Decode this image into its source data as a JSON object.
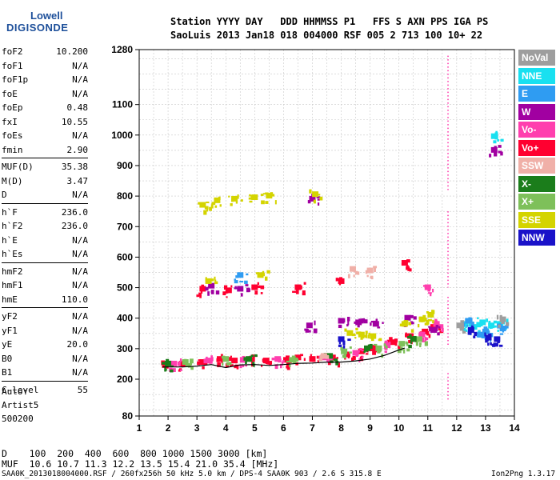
{
  "logo": {
    "line1": "Lowell",
    "line2": "DIGISONDE"
  },
  "header": {
    "line1": "Station YYYY DAY   DDD HHMMSS P1   FFS S AXN PPS IGA PS",
    "line2": "SaoLuis 2013 Jan18 018 004000 RSF 005 2 713 100 10+ 22"
  },
  "params": [
    {
      "name": "foF2",
      "value": "10.200"
    },
    {
      "name": "foF1",
      "value": "N/A"
    },
    {
      "name": "foF1p",
      "value": "N/A"
    },
    {
      "name": "foE",
      "value": "N/A"
    },
    {
      "name": "foEp",
      "value": "0.48"
    },
    {
      "name": "fxI",
      "value": "10.55"
    },
    {
      "name": "foEs",
      "value": "N/A"
    },
    {
      "name": "fmin",
      "value": "2.90"
    },
    {
      "name": "MUF(D)",
      "value": "35.38"
    },
    {
      "name": "M(D)",
      "value": "3.47"
    },
    {
      "name": "D",
      "value": "N/A"
    },
    {
      "name": "h`F",
      "value": "236.0"
    },
    {
      "name": "h`F2",
      "value": "236.0"
    },
    {
      "name": "h`E",
      "value": "N/A"
    },
    {
      "name": "h`Es",
      "value": "N/A"
    },
    {
      "name": "hmF2",
      "value": "N/A"
    },
    {
      "name": "hmF1",
      "value": "N/A"
    },
    {
      "name": "hmE",
      "value": "110.0"
    },
    {
      "name": "yF2",
      "value": "N/A"
    },
    {
      "name": "yF1",
      "value": "N/A"
    },
    {
      "name": "yE",
      "value": "20.0"
    },
    {
      "name": "B0",
      "value": "N/A"
    },
    {
      "name": "B1",
      "value": "N/A"
    },
    {
      "name": "C-level",
      "value": "55"
    }
  ],
  "autoscale": {
    "line1": "Auto:",
    "line2": "Artist5",
    "line3": "500200"
  },
  "legend": [
    {
      "label": "NoVal",
      "color": "#9e9e9e"
    },
    {
      "label": "NNE",
      "color": "#19e0f0"
    },
    {
      "label": "E",
      "color": "#2f9cf2"
    },
    {
      "label": "W",
      "color": "#a100a1"
    },
    {
      "label": "Vo-",
      "color": "#ff3fae"
    },
    {
      "label": "Vo+",
      "color": "#ff0030"
    },
    {
      "label": "SSW",
      "color": "#f0b0a8"
    },
    {
      "label": "X-",
      "color": "#1b7d1b"
    },
    {
      "label": "X+",
      "color": "#7ec05a"
    },
    {
      "label": "SSE",
      "color": "#d4d400"
    },
    {
      "label": "NNW",
      "color": "#1a12c9"
    }
  ],
  "muf_table": {
    "row1": "D    100  200  400  600  800 1000 1500 3000 [km]",
    "row2": "MUF  10.6 10.7 11.3 12.2 13.5 15.4 21.0 35.4 [MHz]"
  },
  "footer": {
    "left": "SAA0K_2013018004000.RSF / 260fx256h 50 kHz 5.0 km / DPS-4 SAA0K 903 / 2.6 S 315.8 E",
    "right": "Ion2Png 1.3.17"
  },
  "chart_data": {
    "type": "scatter",
    "title": "",
    "xlabel": "",
    "ylabel": "",
    "xlim": [
      1,
      14
    ],
    "ylim": [
      80,
      1280
    ],
    "x_ticks": [
      1,
      2,
      3,
      4,
      5,
      6,
      7,
      8,
      9,
      10,
      11,
      12,
      13,
      14
    ],
    "y_ticks": [
      80,
      200,
      300,
      400,
      500,
      600,
      700,
      800,
      900,
      1000,
      1100,
      1280
    ],
    "grid": true,
    "legend_position": "right",
    "series": [
      {
        "name": "Vo+",
        "color": "#ff0030",
        "points": [
          [
            1.9,
            245
          ],
          [
            2.5,
            250
          ],
          [
            3.2,
            255
          ],
          [
            3.8,
            265
          ],
          [
            4.3,
            260
          ],
          [
            4.9,
            265
          ],
          [
            5.4,
            260
          ],
          [
            6.1,
            262
          ],
          [
            6.5,
            270
          ],
          [
            7.0,
            265
          ],
          [
            7.7,
            270
          ],
          [
            8.2,
            280
          ],
          [
            8.7,
            290
          ],
          [
            9.1,
            300
          ],
          [
            9.8,
            320
          ],
          [
            10.4,
            340
          ],
          [
            10.9,
            355
          ],
          [
            11.2,
            370
          ],
          [
            3.2,
            495
          ],
          [
            4.1,
            490
          ],
          [
            5.0,
            500
          ],
          [
            6.5,
            500
          ],
          [
            8.0,
            520
          ],
          [
            10.2,
            580
          ]
        ]
      },
      {
        "name": "Vo-",
        "color": "#ff3fae",
        "points": [
          [
            2.2,
            250
          ],
          [
            3.4,
            260
          ],
          [
            4.6,
            262
          ],
          [
            5.8,
            265
          ],
          [
            7.4,
            270
          ],
          [
            8.5,
            285
          ],
          [
            9.6,
            310
          ],
          [
            10.8,
            345
          ],
          [
            11.0,
            500
          ],
          [
            11.3,
            380
          ]
        ]
      },
      {
        "name": "W",
        "color": "#a100a1",
        "points": [
          [
            3.5,
            505
          ],
          [
            4.5,
            495
          ],
          [
            6.9,
            375
          ],
          [
            7.0,
            790
          ],
          [
            8.0,
            390
          ],
          [
            8.6,
            385
          ],
          [
            9.2,
            380
          ],
          [
            10.3,
            400
          ],
          [
            11.2,
            360
          ],
          [
            13.3,
            950
          ]
        ]
      },
      {
        "name": "SSE",
        "color": "#d4d400",
        "points": [
          [
            3.2,
            770
          ],
          [
            3.7,
            785
          ],
          [
            4.3,
            790
          ],
          [
            5.0,
            795
          ],
          [
            5.5,
            800
          ],
          [
            7.1,
            805
          ],
          [
            8.3,
            350
          ],
          [
            8.7,
            345
          ],
          [
            9.1,
            340
          ],
          [
            10.2,
            380
          ],
          [
            10.8,
            395
          ],
          [
            11.1,
            410
          ],
          [
            5.2,
            540
          ],
          [
            3.4,
            520
          ]
        ]
      },
      {
        "name": "X+",
        "color": "#7ec05a",
        "points": [
          [
            2.6,
            255
          ],
          [
            4.0,
            265
          ],
          [
            6.3,
            262
          ],
          [
            8.1,
            290
          ],
          [
            9.3,
            300
          ],
          [
            10.1,
            315
          ],
          [
            10.7,
            330
          ]
        ]
      },
      {
        "name": "X-",
        "color": "#1b7d1b",
        "points": [
          [
            2.0,
            250
          ],
          [
            4.8,
            265
          ],
          [
            7.6,
            275
          ],
          [
            8.9,
            300
          ],
          [
            10.5,
            330
          ]
        ]
      },
      {
        "name": "NNE",
        "color": "#19e0f0",
        "points": [
          [
            12.3,
            380
          ],
          [
            12.6,
            370
          ],
          [
            12.9,
            385
          ],
          [
            13.2,
            375
          ],
          [
            13.5,
            380
          ],
          [
            13.3,
            995
          ]
        ]
      },
      {
        "name": "E",
        "color": "#2f9cf2",
        "points": [
          [
            12.4,
            390
          ],
          [
            12.8,
            345
          ],
          [
            13.0,
            355
          ],
          [
            13.6,
            365
          ],
          [
            4.5,
            540
          ]
        ]
      },
      {
        "name": "NNW",
        "color": "#1a12c9",
        "points": [
          [
            12.5,
            360
          ],
          [
            13.1,
            335
          ],
          [
            13.4,
            330
          ],
          [
            8.0,
            330
          ]
        ]
      },
      {
        "name": "SSW",
        "color": "#f0b0a8",
        "points": [
          [
            7.4,
            275
          ],
          [
            8.4,
            560
          ],
          [
            9.0,
            555
          ]
        ]
      },
      {
        "name": "NoVal",
        "color": "#9e9e9e",
        "points": [
          [
            12.1,
            375
          ],
          [
            13.6,
            395
          ]
        ]
      }
    ],
    "trace": {
      "name": "h'F trace",
      "color": "#000000",
      "points": [
        [
          1.8,
          240
        ],
        [
          2.5,
          240
        ],
        [
          3.0,
          243
        ],
        [
          3.5,
          248
        ],
        [
          4.0,
          238
        ],
        [
          4.5,
          247
        ],
        [
          5.0,
          248
        ],
        [
          5.5,
          245
        ],
        [
          6.0,
          248
        ],
        [
          6.5,
          252
        ],
        [
          7.0,
          253
        ],
        [
          7.5,
          256
        ],
        [
          8.0,
          256
        ],
        [
          8.5,
          260
        ],
        [
          9.0,
          266
        ],
        [
          9.5,
          278
        ],
        [
          10.0,
          296
        ],
        [
          10.2,
          302
        ]
      ]
    },
    "dotted_lines": [
      {
        "x": 11.7,
        "y": [
          820,
          1260
        ]
      },
      {
        "x": 11.7,
        "y": [
          500,
          750
        ]
      },
      {
        "x": 11.7,
        "y": [
          310,
          470
        ]
      },
      {
        "x": 11.7,
        "y": [
          130,
          220
        ]
      }
    ]
  }
}
